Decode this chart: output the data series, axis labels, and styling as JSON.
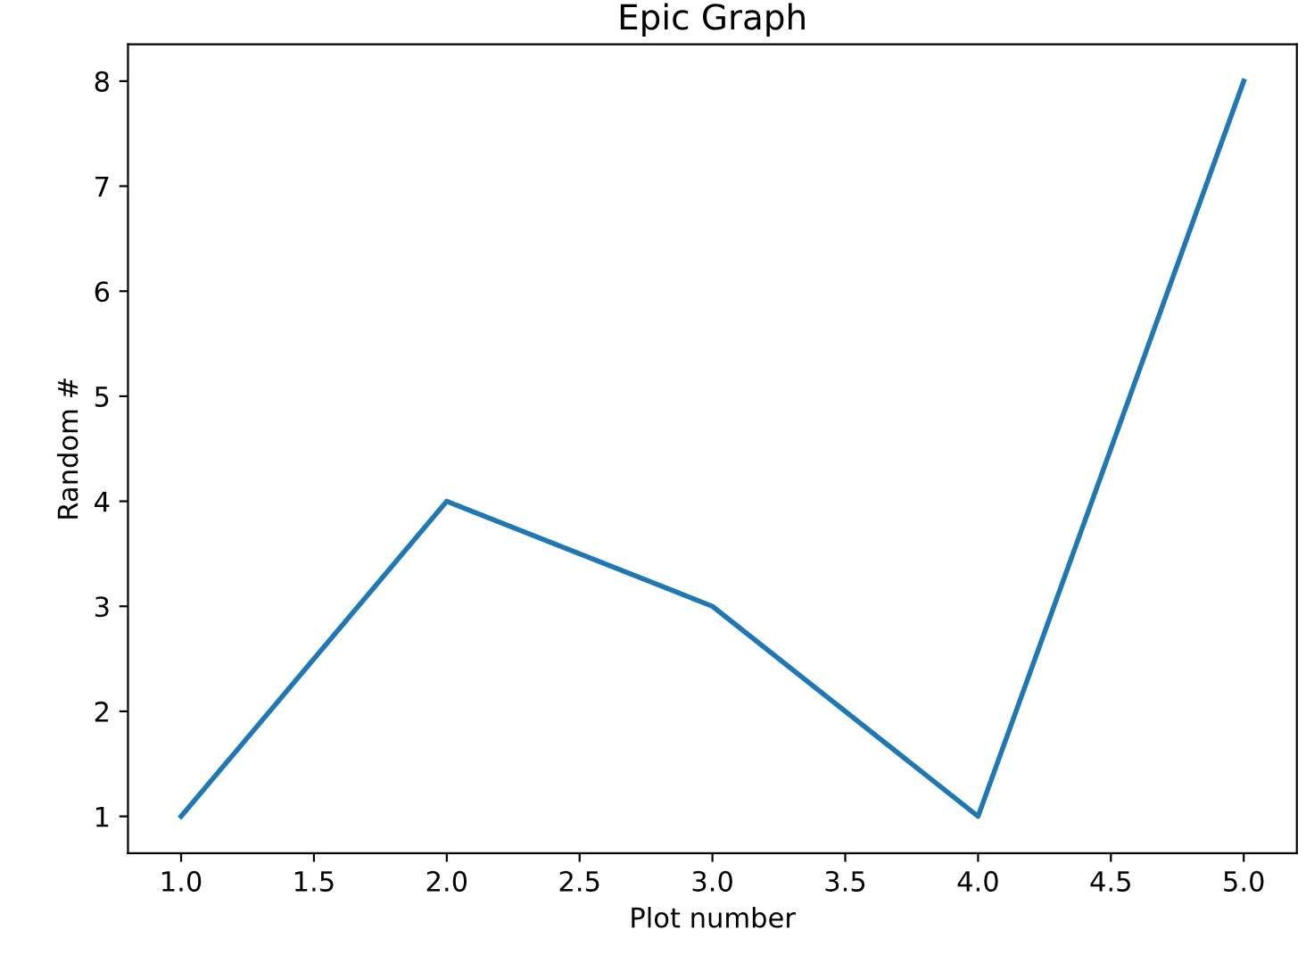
{
  "chart_data": {
    "type": "line",
    "title": "Epic Graph",
    "xlabel": "Plot number",
    "ylabel": "Random #",
    "x": [
      1,
      2,
      3,
      4,
      5
    ],
    "series": [
      {
        "color": "#1f77b4",
        "values": [
          1,
          4,
          3,
          1,
          8
        ]
      }
    ],
    "xlim": [
      0.8,
      5.2
    ],
    "ylim": [
      0.65,
      8.35
    ],
    "xticks": [
      {
        "value": 1,
        "label": "1.0"
      },
      {
        "value": 1.5,
        "label": "1.5"
      },
      {
        "value": 2,
        "label": "2.0"
      },
      {
        "value": 2.5,
        "label": "2.5"
      },
      {
        "value": 3,
        "label": "3.0"
      },
      {
        "value": 3.5,
        "label": "3.5"
      },
      {
        "value": 4,
        "label": "4.0"
      },
      {
        "value": 4.5,
        "label": "4.5"
      },
      {
        "value": 5,
        "label": "5.0"
      }
    ],
    "yticks": [
      1,
      2,
      3,
      4,
      5,
      6,
      7,
      8
    ],
    "grid": false
  }
}
